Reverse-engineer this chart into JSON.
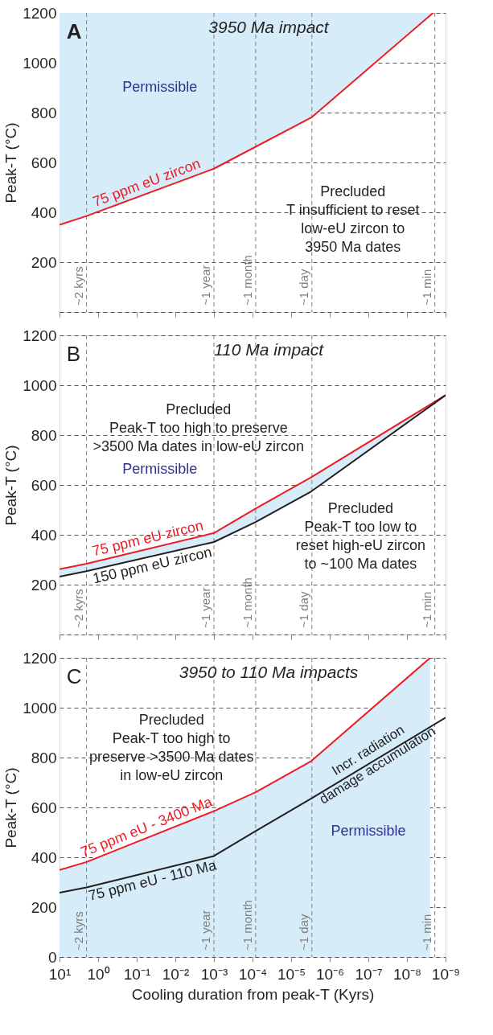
{
  "chart_data": [
    {
      "type": "line",
      "title": "3950 Ma impact",
      "ylabel": "Peak-T (°C)",
      "log": "x",
      "grid": "y",
      "tick_labels": "y",
      "xlim": [
        10,
        1e-09
      ],
      "ylim": [
        0,
        1200
      ],
      "xticks": [
        {
          "value": 10,
          "label": null
        },
        {
          "value": 1,
          "label": null
        },
        {
          "value": 0.1,
          "label": null
        },
        {
          "value": 0.01,
          "label": null
        },
        {
          "value": 0.001,
          "label": null
        },
        {
          "value": 0.0001,
          "label": null
        },
        {
          "value": 1e-05,
          "label": null
        },
        {
          "value": 1e-06,
          "label": null
        },
        {
          "value": 1e-07,
          "label": null
        },
        {
          "value": 1e-08,
          "label": null
        },
        {
          "value": 1e-09,
          "label": null
        }
      ],
      "yticks": [
        {
          "value": 0,
          "label": null
        },
        200,
        400,
        600,
        800,
        1000,
        1200
      ],
      "series": [
        {
          "name": "75 ppm eU zircon",
          "color": "#ed1c24",
          "x": [
            10,
            2,
            0.001,
            3e-06,
            2.1e-09
          ],
          "values": [
            350,
            385,
            575,
            780,
            1200
          ]
        }
      ],
      "ref_lines": [
        {
          "axis": "x",
          "value": 2,
          "label": "~2 kyrs",
          "color": "#808080",
          "line_style": "dashed"
        },
        {
          "axis": "x",
          "value": 0.001,
          "label": "~1 year",
          "color": "#808080",
          "line_style": "dashed"
        },
        {
          "axis": "x",
          "value": 8.3e-05,
          "label": "~1 month",
          "color": "#808080",
          "line_style": "dashed"
        },
        {
          "axis": "x",
          "value": 2.9e-06,
          "label": "~1 day",
          "color": "#808080",
          "line_style": "dashed"
        },
        {
          "axis": "x",
          "value": 1.9e-09,
          "label": "~1 min",
          "color": "#808080",
          "line_style": "dashed"
        }
      ],
      "annotations": [
        "A",
        "Permissible",
        "Precluded\nT insufficient to reset\nlow-eU zircon to\n3950 Ma dates"
      ]
    },
    {
      "type": "line",
      "title": "110 Ma impact",
      "ylabel": "Peak-T (°C)",
      "log": "x",
      "grid": "y",
      "tick_labels": "y",
      "xlim": [
        10,
        1e-09
      ],
      "ylim": [
        0,
        1200
      ],
      "xticks": [
        {
          "value": 10,
          "label": null
        },
        {
          "value": 1,
          "label": null
        },
        {
          "value": 0.1,
          "label": null
        },
        {
          "value": 0.01,
          "label": null
        },
        {
          "value": 0.001,
          "label": null
        },
        {
          "value": 0.0001,
          "label": null
        },
        {
          "value": 1e-05,
          "label": null
        },
        {
          "value": 1e-06,
          "label": null
        },
        {
          "value": 1e-07,
          "label": null
        },
        {
          "value": 1e-08,
          "label": null
        },
        {
          "value": 1e-09,
          "label": null
        }
      ],
      "yticks": [
        {
          "value": 0,
          "label": null
        },
        200,
        400,
        600,
        800,
        1000,
        1200
      ],
      "series": [
        {
          "name": "75 ppm eU zircon",
          "color": "#ed1c24",
          "x": [
            10,
            2,
            0.001,
            8.3e-05,
            3e-06,
            1e-09
          ],
          "values": [
            262,
            284,
            407,
            505,
            631,
            960
          ]
        },
        {
          "name": "150 ppm eU zircon",
          "color": "#231f20",
          "x": [
            10,
            2,
            0.001,
            8.3e-05,
            3e-06,
            1e-09
          ],
          "values": [
            232,
            254,
            371,
            451,
            574,
            960
          ]
        }
      ],
      "ref_lines": [
        {
          "axis": "x",
          "value": 2,
          "label": "~2 kyrs",
          "color": "#808080",
          "line_style": "dashed"
        },
        {
          "axis": "x",
          "value": 0.001,
          "label": "~1 year",
          "color": "#808080",
          "line_style": "dashed"
        },
        {
          "axis": "x",
          "value": 8.3e-05,
          "label": "~1 month",
          "color": "#808080",
          "line_style": "dashed"
        },
        {
          "axis": "x",
          "value": 2.9e-06,
          "label": "~1 day",
          "color": "#808080",
          "line_style": "dashed"
        },
        {
          "axis": "x",
          "value": 1.9e-09,
          "label": "~1 min",
          "color": "#808080",
          "line_style": "dashed"
        }
      ],
      "annotations": [
        "B",
        "Precluded\nPeak-T too high to preserve\n>3500 Ma dates in low-eU zircon",
        "Permissible",
        "Precluded\nPeak-T too low to\nreset high-eU zircon\nto ~100 Ma dates"
      ]
    },
    {
      "type": "line",
      "title": "3950 to 110 Ma impacts",
      "ylabel": "Peak-T (°C)",
      "xlabel": "Cooling duration from peak-T (Kyrs)",
      "log": "x",
      "grid": "y",
      "xlim": [
        10,
        1e-09
      ],
      "ylim": [
        0,
        1200
      ],
      "xticks": [
        {
          "value": 10,
          "label": "10¹"
        },
        {
          "value": 1,
          "label": "10⁰"
        },
        {
          "value": 0.1,
          "label": "10⁻¹"
        },
        {
          "value": 0.01,
          "label": "10⁻²"
        },
        {
          "value": 0.001,
          "label": "10⁻³"
        },
        {
          "value": 0.0001,
          "label": "10⁻⁴"
        },
        {
          "value": 1e-05,
          "label": "10⁻⁵"
        },
        {
          "value": 1e-06,
          "label": "10⁻⁶"
        },
        {
          "value": 1e-07,
          "label": "10⁻⁷"
        },
        {
          "value": 1e-08,
          "label": "10⁻⁸"
        },
        {
          "value": 1e-09,
          "label": "10⁻⁹"
        }
      ],
      "yticks": [
        0,
        200,
        400,
        600,
        800,
        1000,
        1200
      ],
      "series": [
        {
          "name": "75 ppm eU - 3400 Ma",
          "color": "#ed1c24",
          "x": [
            10,
            2,
            0.001,
            8.3e-05,
            3e-06,
            2.5e-09
          ],
          "values": [
            349,
            381,
            585,
            661,
            786,
            1200
          ]
        },
        {
          "name": "75 ppm eU - 110 Ma",
          "color": "#231f20",
          "x": [
            10,
            2,
            0.001,
            8.3e-05,
            3e-06,
            1e-09
          ],
          "values": [
            258,
            279,
            405,
            505,
            636,
            960
          ]
        }
      ],
      "ref_lines": [
        {
          "axis": "x",
          "value": 2,
          "label": "~2 kyrs",
          "color": "#808080",
          "line_style": "dashed"
        },
        {
          "axis": "x",
          "value": 0.001,
          "label": "~1 year",
          "color": "#808080",
          "line_style": "dashed"
        },
        {
          "axis": "x",
          "value": 8.3e-05,
          "label": "~1 month",
          "color": "#808080",
          "line_style": "dashed"
        },
        {
          "axis": "x",
          "value": 2.9e-06,
          "label": "~1 day",
          "color": "#808080",
          "line_style": "dashed"
        },
        {
          "axis": "x",
          "value": 1.9e-09,
          "label": "~1 min",
          "color": "#808080",
          "line_style": "dashed"
        }
      ],
      "annotations": [
        "C",
        "Precluded\nPeak-T too high to\npreserve >3500 Ma dates\nin low-eU zircon",
        "Incr. radiation\ndamage accumulation",
        "Permissible"
      ]
    }
  ]
}
